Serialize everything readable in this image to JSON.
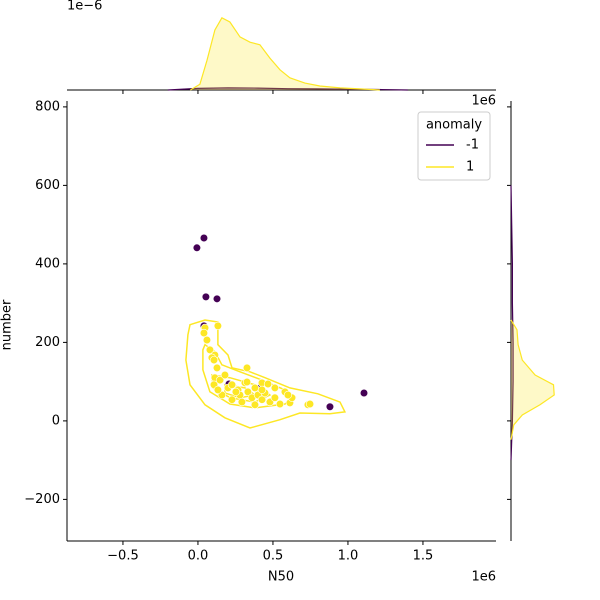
{
  "chart_data": {
    "type": "scatter",
    "xlabel": "N50",
    "ylabel": "number",
    "x_offset_label": "1e6",
    "xlim": [
      -873000,
      1987000
    ],
    "ylim": [
      -306,
      815
    ],
    "xticks": [
      {
        "value": -500000,
        "label": "−0.5"
      },
      {
        "value": 0,
        "label": "0.0"
      },
      {
        "value": 500000,
        "label": "0.5"
      },
      {
        "value": 1000000,
        "label": "1.0"
      },
      {
        "value": 1500000,
        "label": "1.5"
      }
    ],
    "yticks": [
      {
        "value": -200,
        "label": "−200"
      },
      0,
      200,
      400,
      600,
      800
    ],
    "legend": {
      "title": "anomaly",
      "corner": "upper right"
    },
    "series": [
      {
        "name": "-1",
        "color": "#440154",
        "x": [
          -7000,
          40000,
          53000,
          127000,
          40000,
          1107000,
          880000,
          413000,
          207000
        ],
        "values": [
          441,
          466,
          316,
          311,
          242,
          71,
          36,
          84,
          94
        ]
      },
      {
        "name": "1",
        "color": "#fde725",
        "x": [
          47000,
          133000,
          60000,
          80000,
          113000,
          93000,
          127000,
          113000,
          107000,
          147000,
          180000,
          200000,
          227000,
          267000,
          280000,
          313000,
          333000,
          360000,
          380000,
          400000,
          427000,
          447000,
          480000,
          513000,
          547000,
          613000,
          627000,
          580000,
          513000,
          427000,
          327000,
          327000,
          160000,
          227000,
          293000,
          380000,
          133000,
          733000,
          747000,
          600000,
          253000,
          427000,
          467000,
          40000,
          107000
        ],
        "values": [
          237,
          242,
          206,
          181,
          168,
          161,
          135,
          110,
          92,
          104,
          117,
          84,
          92,
          79,
          66,
          97,
          74,
          59,
          84,
          66,
          54,
          71,
          48,
          59,
          43,
          46,
          59,
          74,
          84,
          97,
          135,
          99,
          66,
          54,
          48,
          41,
          79,
          41,
          43,
          66,
          74,
          79,
          94,
          224,
          155
        ]
      }
    ],
    "kde_contours": {
      "color": "#fde725",
      "levels": [
        {
          "x": [
            -53000,
            47000,
            133000,
            133000,
            200000,
            227000,
            347000,
            447000,
            613000,
            800000,
            947000,
            980000,
            880000,
            680000,
            547000,
            347000,
            180000,
            47000,
            -53000,
            -80000,
            -67000
          ],
          "y": [
            245,
            257,
            252,
            194,
            168,
            135,
            125,
            110,
            84,
            69,
            48,
            23,
            18,
            20,
            3,
            -18,
            8,
            41,
            92,
            155,
            219
          ]
        },
        {
          "x": [
            47000,
            113000,
            160000,
            280000,
            427000,
            580000,
            647000,
            580000,
            380000,
            213000,
            80000,
            33000,
            33000
          ],
          "y": [
            194,
            176,
            143,
            125,
            104,
            79,
            61,
            43,
            33,
            43,
            74,
            130,
            181
          ]
        },
        {
          "x": [
            93000,
            213000,
            380000,
            480000,
            380000,
            213000,
            100000
          ],
          "y": [
            117,
            110,
            92,
            66,
            48,
            59,
            84
          ]
        },
        {
          "x": [
            180000,
            313000,
            380000,
            280000,
            180000
          ],
          "y": [
            92,
            84,
            66,
            59,
            71
          ]
        }
      ]
    },
    "marginal_x": {
      "offset_label": "1e−6",
      "ylim": [
        0,
        1.6e-06
      ],
      "curves": [
        {
          "color": "#440154",
          "x": [
            -200000,
            0,
            200000,
            400000,
            600000,
            800000,
            1000000,
            1200000,
            1400000
          ],
          "values": [
            0,
            3e-08,
            4e-08,
            3.5e-08,
            2.5e-08,
            2e-08,
            1.5e-08,
            1e-08,
            0
          ]
        },
        {
          "color": "#fde725",
          "x": [
            -50000,
            13000,
            60000,
            113000,
            160000,
            213000,
            280000,
            347000,
            413000,
            480000,
            547000,
            613000,
            713000,
            813000,
            947000,
            1080000,
            1213000
          ],
          "values": [
            0,
            1.1e-07,
            5.6e-07,
            1.13e-06,
            1.36e-06,
            1.28e-06,
            1e-06,
            9e-07,
            8.5e-07,
            6e-07,
            3.8e-07,
            2.3e-07,
            1.3e-07,
            7.5e-08,
            4e-08,
            2e-08,
            0
          ]
        }
      ]
    },
    "marginal_y": {
      "offset_label": "1e6",
      "xlim": [
        0,
        0.012
      ],
      "curves": [
        {
          "color": "#440154",
          "y": [
            -100,
            0,
            100,
            200,
            300,
            400,
            500,
            600
          ],
          "values": [
            0,
            0.0002,
            0.0003,
            0.0003,
            0.0002,
            0.0002,
            0.0001,
            0
          ]
        },
        {
          "color": "#fde725",
          "y": [
            257,
            232,
            194,
            155,
            117,
            92,
            66,
            41,
            15,
            -10,
            -48
          ],
          "values": [
            0,
            0.00085,
            0.001,
            0.0016,
            0.0034,
            0.006,
            0.0061,
            0.0041,
            0.0016,
            0.0004,
            0
          ]
        }
      ]
    }
  }
}
